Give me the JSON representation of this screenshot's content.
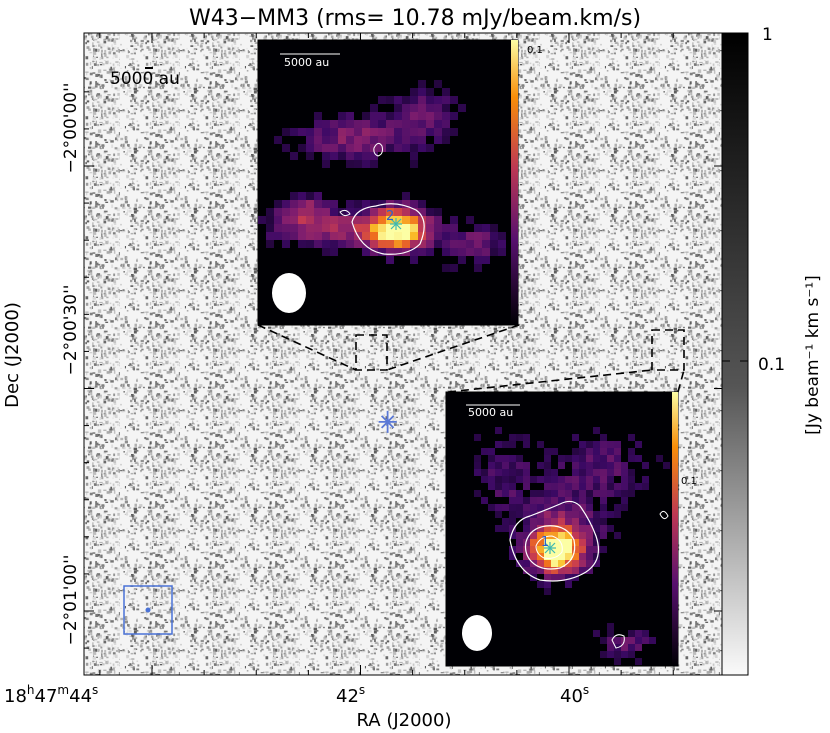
{
  "chart_data": {
    "type": "heatmap",
    "title": "W43−MM3 (rms= 10.78 mJy/beam.km/s)",
    "xlabel": "RA (J2000)",
    "ylabel": "Dec (J2000)",
    "colorbar_label": "[Jy beam⁻¹ km s⁻¹]",
    "colorbar_ticks": [
      {
        "value": 1,
        "label": "1"
      },
      {
        "value": 0.1,
        "label": "0.1"
      }
    ],
    "colorbar_scale": "log",
    "x_ticks": [
      {
        "ra_sec": 44,
        "label_main": "18",
        "sup1": "h",
        "mid": "47",
        "sup2": "m",
        "tail": "44",
        "sup3": "s"
      },
      {
        "ra_sec": 42,
        "label_main": "42",
        "sup3": "s"
      },
      {
        "ra_sec": 40,
        "label_main": "40",
        "sup3": "s"
      }
    ],
    "y_ticks": [
      {
        "dec_arcsec": 0,
        "label": "−2°00'00''"
      },
      {
        "dec_arcsec": 30,
        "label": "−2°00'30''"
      },
      {
        "dec_arcsec": 60,
        "label": "−2°01'00''"
      }
    ],
    "scalebar_label": "5000 au",
    "sources": [
      {
        "ra_sec": 41.74,
        "dec_arcsec": 34.5,
        "marker": "cross"
      },
      {
        "ra_sec": 39.3,
        "dec_arcsec": 33.0,
        "marker": "cross"
      }
    ],
    "insets": [
      {
        "name": "inset-core-2",
        "scalebar_label": "5000 au",
        "colorbar_tick_label": "0.1",
        "source_label": "2",
        "colormap": "inferno"
      },
      {
        "name": "inset-core-1",
        "scalebar_label": "5000 au",
        "colorbar_tick_label": "0.1",
        "source_label": "1",
        "colormap": "inferno"
      }
    ]
  }
}
